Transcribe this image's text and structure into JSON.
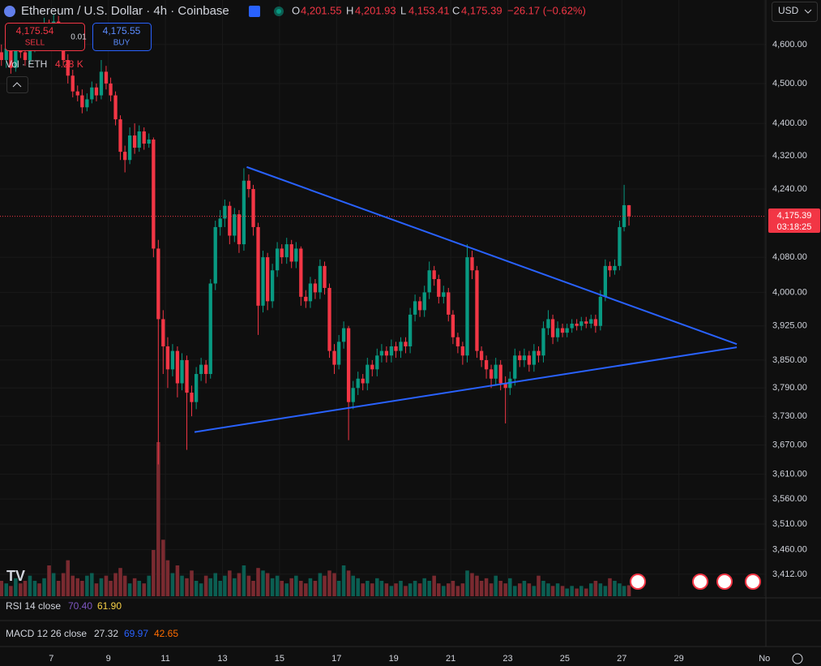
{
  "header": {
    "symbol": "Ethereum / U.S. Dollar · 4h · Coinbase",
    "o_label": "O",
    "o": "4,201.55",
    "h_label": "H",
    "h": "4,201.93",
    "l_label": "L",
    "l": "4,153.41",
    "c_label": "C",
    "c": "4,175.39",
    "change": "−26.17 (−0.62%)"
  },
  "trade": {
    "sell_price": "4,175.54",
    "sell": "SELL",
    "spread": "0.01",
    "buy_price": "4,175.55",
    "buy": "BUY"
  },
  "volume_legend": {
    "label": "Vol · ETH",
    "value": "4.28 K"
  },
  "currency": "USD",
  "price_label": {
    "price": "4,175.39",
    "countdown": "03:18:25"
  },
  "rsi": {
    "label": "RSI 14 close",
    "v1": "70.40",
    "v2": "61.90"
  },
  "macd": {
    "label": "MACD 12 26 close",
    "v1": "27.32",
    "v2": "69.97",
    "v3": "42.65"
  },
  "chart_data": {
    "type": "candlestick",
    "log": true,
    "grid": true,
    "up_color": "#089981",
    "down_color": "#f23645",
    "volume_up_color": "#0b5e52",
    "volume_down_color": "#7a2a30",
    "xlim": [
      5.2,
      32.05
    ],
    "ylim": [
      3370,
      4717
    ],
    "xticks": [
      7,
      9,
      11,
      13,
      15,
      17,
      19,
      21,
      23,
      25,
      27,
      29,
      {
        "value": 32,
        "label": "No"
      }
    ],
    "yticks": [
      {
        "value": 4600,
        "label": "4,600.00"
      },
      {
        "value": 4500,
        "label": "4,500.00"
      },
      {
        "value": 4400,
        "label": "4,400.00"
      },
      {
        "value": 4320,
        "label": "4,320.00"
      },
      {
        "value": 4240,
        "label": "4,240.00"
      },
      {
        "value": 4080,
        "label": "4,080.00"
      },
      {
        "value": 4000,
        "label": "4,000.00"
      },
      {
        "value": 3925,
        "label": "3,925.00"
      },
      {
        "value": 3850,
        "label": "3,850.00"
      },
      {
        "value": 3790,
        "label": "3,790.00"
      },
      {
        "value": 3730,
        "label": "3,730.00"
      },
      {
        "value": 3670,
        "label": "3,670.00"
      },
      {
        "value": 3610,
        "label": "3,610.00"
      },
      {
        "value": 3560,
        "label": "3,560.00"
      },
      {
        "value": 3510,
        "label": "3,510.00"
      },
      {
        "value": 3460,
        "label": "3,460.00"
      },
      {
        "value": 3412,
        "label": "3,412.00"
      }
    ],
    "x": [
      5.25,
      5.42,
      5.58,
      5.75,
      5.92,
      6.08,
      6.25,
      6.42,
      6.58,
      6.75,
      6.92,
      7.08,
      7.25,
      7.42,
      7.58,
      7.75,
      7.92,
      8.08,
      8.25,
      8.42,
      8.58,
      8.75,
      8.92,
      9.08,
      9.25,
      9.42,
      9.58,
      9.75,
      9.92,
      10.08,
      10.25,
      10.42,
      10.58,
      10.75,
      10.92,
      11.08,
      11.25,
      11.42,
      11.58,
      11.75,
      11.92,
      12.08,
      12.25,
      12.42,
      12.58,
      12.75,
      12.92,
      13.08,
      13.25,
      13.42,
      13.58,
      13.75,
      13.92,
      14.08,
      14.25,
      14.42,
      14.58,
      14.75,
      14.92,
      15.08,
      15.25,
      15.42,
      15.58,
      15.75,
      15.92,
      16.08,
      16.25,
      16.42,
      16.58,
      16.75,
      16.92,
      17.08,
      17.25,
      17.42,
      17.58,
      17.75,
      17.92,
      18.08,
      18.25,
      18.42,
      18.58,
      18.75,
      18.92,
      19.08,
      19.25,
      19.42,
      19.58,
      19.75,
      19.92,
      20.08,
      20.25,
      20.42,
      20.58,
      20.75,
      20.92,
      21.08,
      21.25,
      21.42,
      21.58,
      21.75,
      21.92,
      22.08,
      22.25,
      22.42,
      22.58,
      22.75,
      22.92,
      23.08,
      23.25,
      23.42,
      23.58,
      23.75,
      23.92,
      24.08,
      24.25,
      24.42,
      24.58,
      24.75,
      24.92,
      25.08,
      25.25,
      25.42,
      25.58,
      25.75,
      25.92,
      26.08,
      26.25,
      26.42,
      26.58,
      26.75,
      26.92,
      27.08,
      27.25
    ],
    "open": [
      4580,
      4560,
      4590,
      4540,
      4600,
      4580,
      4560,
      4590,
      4620,
      4600,
      4650,
      4630,
      4660,
      4610,
      4560,
      4520,
      4480,
      4470,
      4440,
      4460,
      4490,
      4470,
      4530,
      4500,
      4470,
      4410,
      4330,
      4310,
      4370,
      4340,
      4380,
      4350,
      4360,
      4100,
      3940,
      3880,
      3830,
      3870,
      3800,
      3850,
      3780,
      3760,
      3820,
      3840,
      3820,
      4020,
      4150,
      4170,
      4200,
      4130,
      4180,
      4110,
      4260,
      4240,
      4150,
      3970,
      4080,
      3980,
      4050,
      4100,
      4080,
      4110,
      4070,
      4100,
      3990,
      3980,
      4020,
      4000,
      4060,
      4010,
      3870,
      3840,
      3890,
      3920,
      3760,
      3790,
      3810,
      3800,
      3840,
      3830,
      3860,
      3870,
      3860,
      3880,
      3870,
      3890,
      3880,
      3950,
      3980,
      3960,
      4000,
      4050,
      4030,
      3990,
      4000,
      3950,
      3900,
      3880,
      3860,
      4080,
      4050,
      3870,
      3850,
      3830,
      3810,
      3840,
      3800,
      3790,
      3810,
      3860,
      3850,
      3860,
      3840,
      3870,
      3860,
      3920,
      3940,
      3900,
      3920,
      3910,
      3920,
      3930,
      3925,
      3935,
      3930,
      3940,
      3925,
      3990,
      4060,
      4050,
      4060,
      4150,
      4201.55
    ],
    "high": [
      4600,
      4610,
      4605,
      4620,
      4615,
      4595,
      4610,
      4640,
      4635,
      4670,
      4665,
      4680,
      4675,
      4625,
      4575,
      4535,
      4495,
      4485,
      4475,
      4505,
      4500,
      4560,
      4545,
      4515,
      4480,
      4420,
      4345,
      4390,
      4400,
      4395,
      4390,
      4375,
      4365,
      4120,
      3960,
      3900,
      3885,
      3880,
      3865,
      3860,
      3795,
      3835,
      3855,
      3850,
      4030,
      4165,
      4190,
      4215,
      4210,
      4195,
      4190,
      4290,
      4275,
      4250,
      4160,
      4095,
      4090,
      4065,
      4115,
      4110,
      4125,
      4120,
      4115,
      4105,
      4005,
      4035,
      4030,
      4075,
      4070,
      4020,
      3885,
      3905,
      3935,
      3925,
      3805,
      3825,
      3820,
      3855,
      3850,
      3875,
      3885,
      3880,
      3895,
      3890,
      3900,
      3900,
      3965,
      3995,
      3990,
      4015,
      4070,
      4060,
      4040,
      4015,
      4010,
      3960,
      3910,
      3890,
      4110,
      4095,
      4060,
      3880,
      3860,
      3840,
      3855,
      3850,
      3815,
      3825,
      3875,
      3870,
      3875,
      3870,
      3885,
      3880,
      3935,
      3960,
      3950,
      3935,
      3930,
      3930,
      3940,
      3940,
      3945,
      3945,
      3950,
      3950,
      4005,
      4075,
      4070,
      4075,
      4165,
      4250,
      4201.93
    ],
    "low": [
      4545,
      4540,
      4525,
      4530,
      4565,
      4545,
      4550,
      4580,
      4585,
      4590,
      4615,
      4620,
      4595,
      4545,
      4500,
      4465,
      4455,
      4425,
      4430,
      4450,
      4455,
      4460,
      4485,
      4455,
      4395,
      4310,
      4280,
      4300,
      4325,
      4330,
      4335,
      4340,
      4080,
      3630,
      3820,
      3790,
      3815,
      3770,
      3785,
      3660,
      3730,
      3745,
      3805,
      3800,
      3810,
      4005,
      4130,
      4150,
      4110,
      4115,
      4090,
      4095,
      4220,
      4130,
      3905,
      3955,
      3960,
      3965,
      4035,
      4065,
      4065,
      4055,
      4055,
      3970,
      3965,
      3965,
      3985,
      3985,
      3995,
      3855,
      3820,
      3830,
      3875,
      3680,
      3745,
      3775,
      3785,
      3785,
      3815,
      3815,
      3845,
      3845,
      3845,
      3855,
      3855,
      3865,
      3865,
      3935,
      3945,
      3945,
      3985,
      4015,
      3975,
      3975,
      3935,
      3885,
      3865,
      3840,
      3845,
      4030,
      3855,
      3835,
      3810,
      3790,
      3795,
      3785,
      3715,
      3775,
      3795,
      3835,
      3835,
      3825,
      3825,
      3845,
      3845,
      3905,
      3885,
      3890,
      3900,
      3900,
      3910,
      3915,
      3915,
      3920,
      3920,
      3910,
      3915,
      3980,
      4035,
      4040,
      4050,
      4140,
      4153.41
    ],
    "close": [
      4560,
      4590,
      4540,
      4600,
      4580,
      4560,
      4590,
      4620,
      4600,
      4650,
      4630,
      4660,
      4610,
      4560,
      4520,
      4480,
      4470,
      4440,
      4460,
      4490,
      4470,
      4530,
      4500,
      4470,
      4410,
      4330,
      4310,
      4370,
      4340,
      4380,
      4350,
      4360,
      4100,
      3940,
      3880,
      3830,
      3870,
      3800,
      3850,
      3780,
      3760,
      3820,
      3840,
      3820,
      4020,
      4150,
      4170,
      4200,
      4130,
      4180,
      4110,
      4260,
      4240,
      4150,
      3970,
      4080,
      3980,
      4050,
      4100,
      4080,
      4110,
      4070,
      4100,
      3990,
      3980,
      4020,
      4000,
      4060,
      4010,
      3870,
      3840,
      3890,
      3920,
      3760,
      3790,
      3810,
      3800,
      3840,
      3830,
      3860,
      3870,
      3860,
      3880,
      3870,
      3890,
      3880,
      3950,
      3980,
      3960,
      4000,
      4050,
      4030,
      3990,
      4000,
      3950,
      3900,
      3880,
      3860,
      4080,
      4050,
      3870,
      3850,
      3830,
      3810,
      3840,
      3800,
      3790,
      3810,
      3860,
      3850,
      3860,
      3840,
      3870,
      3860,
      3920,
      3940,
      3900,
      3920,
      3910,
      3920,
      3930,
      3925,
      3935,
      3930,
      3940,
      3925,
      3990,
      4060,
      4050,
      4060,
      4150,
      4201.55,
      4175.39
    ],
    "volume": [
      6,
      5,
      4,
      7,
      5,
      6,
      8,
      6,
      5,
      7,
      12,
      9,
      6,
      9,
      14,
      8,
      7,
      6,
      8,
      9,
      5,
      7,
      8,
      6,
      9,
      11,
      8,
      5,
      7,
      6,
      5,
      8,
      18,
      60,
      22,
      14,
      9,
      12,
      8,
      7,
      10,
      6,
      5,
      8,
      7,
      9,
      6,
      8,
      10,
      7,
      9,
      12,
      8,
      6,
      11,
      10,
      9,
      7,
      8,
      6,
      5,
      7,
      8,
      6,
      5,
      7,
      6,
      9,
      8,
      10,
      9,
      6,
      12,
      10,
      8,
      7,
      5,
      6,
      5,
      7,
      6,
      5,
      4,
      5,
      6,
      4,
      5,
      6,
      5,
      7,
      6,
      8,
      5,
      4,
      5,
      6,
      4,
      5,
      10,
      9,
      8,
      6,
      7,
      5,
      8,
      6,
      5,
      7,
      4,
      5,
      6,
      5,
      4,
      8,
      6,
      5,
      4,
      5,
      4,
      3,
      4,
      3,
      4,
      3,
      5,
      6,
      5,
      4,
      7,
      6,
      5,
      4,
      4.28
    ],
    "trendlines": [
      {
        "color": "#2962ff",
        "points": [
          [
            13.85,
            4293
          ],
          [
            31.03,
            3885
          ]
        ]
      },
      {
        "color": "#2962ff",
        "points": [
          [
            12.02,
            3697
          ],
          [
            31.03,
            3878
          ]
        ]
      }
    ]
  }
}
